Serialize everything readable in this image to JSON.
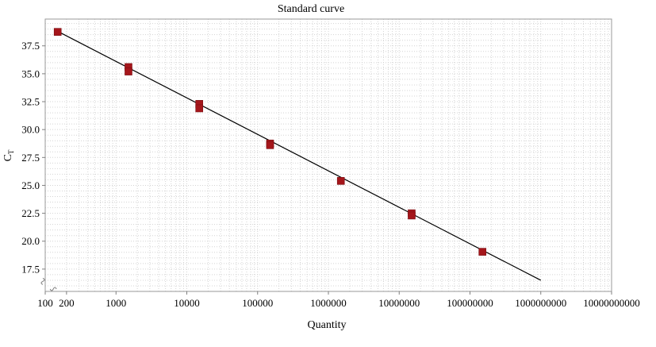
{
  "chart_data": {
    "type": "scatter",
    "title": "Standard curve",
    "xlabel": "Quantity",
    "ylabel_main": "C",
    "ylabel_sub": "T",
    "x_scale": "log",
    "xlim": [
      100,
      10000000000
    ],
    "ylim": [
      15.5,
      39.9
    ],
    "x_ticks": [
      {
        "value": 100,
        "label": "100"
      },
      {
        "value": 200,
        "label": "200"
      },
      {
        "value": 1000,
        "label": "1000"
      },
      {
        "value": 10000,
        "label": "10000"
      },
      {
        "value": 100000,
        "label": "100000"
      },
      {
        "value": 1000000,
        "label": "1000000"
      },
      {
        "value": 10000000,
        "label": "10000000"
      },
      {
        "value": 100000000,
        "label": "100000000"
      },
      {
        "value": 1000000000,
        "label": "1000000000"
      },
      {
        "value": 10000000000,
        "label": "10000000000"
      }
    ],
    "y_ticks": [
      {
        "value": 17.5,
        "label": "17.5"
      },
      {
        "value": 20.0,
        "label": "20.0"
      },
      {
        "value": 22.5,
        "label": "22.5"
      },
      {
        "value": 25.0,
        "label": "25.0"
      },
      {
        "value": 27.5,
        "label": "27.5"
      },
      {
        "value": 30.0,
        "label": "30.0"
      },
      {
        "value": 32.5,
        "label": "32.5"
      },
      {
        "value": 35.0,
        "label": "35.0"
      },
      {
        "value": 37.5,
        "label": "37.5"
      }
    ],
    "grid": true,
    "series": [
      {
        "type": "scatter",
        "color": "#a5161b",
        "points": [
          {
            "x": 150,
            "y": 38.75
          },
          {
            "x": 1500,
            "y": 35.6
          },
          {
            "x": 1500,
            "y": 35.2
          },
          {
            "x": 15000,
            "y": 32.3
          },
          {
            "x": 15000,
            "y": 31.9
          },
          {
            "x": 150000,
            "y": 28.75
          },
          {
            "x": 150000,
            "y": 28.6
          },
          {
            "x": 1500000,
            "y": 25.4
          },
          {
            "x": 15000000,
            "y": 22.5
          },
          {
            "x": 15000000,
            "y": 22.3
          },
          {
            "x": 150000000,
            "y": 19.05
          }
        ]
      },
      {
        "type": "line",
        "color": "#000000",
        "points": [
          {
            "x": 150,
            "y": 38.8
          },
          {
            "x": 1000000000,
            "y": 16.5
          }
        ]
      }
    ]
  }
}
